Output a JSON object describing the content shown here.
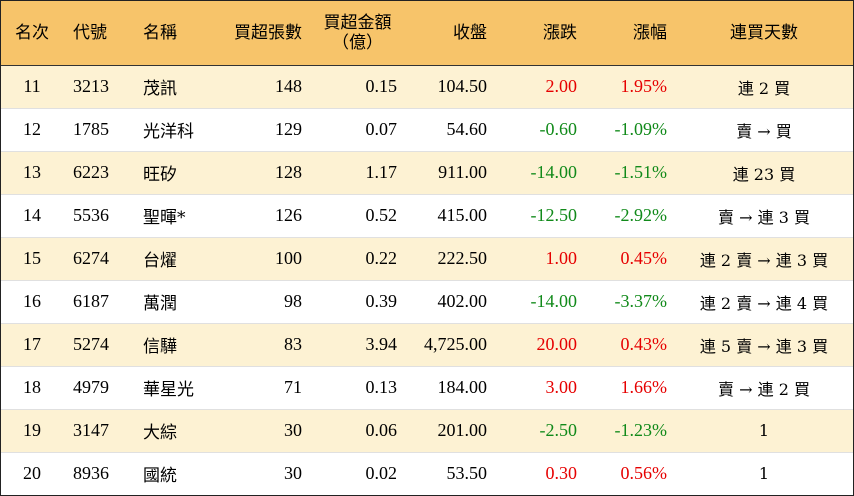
{
  "headers": {
    "rank": "名次",
    "code": "代號",
    "name": "名稱",
    "net_buy_lots": "買超張數",
    "net_buy_amount_line1": "買超金額",
    "net_buy_amount_line2": "（億）",
    "close": "收盤",
    "change": "漲跌",
    "change_pct": "漲幅",
    "consecutive_days": "連買天數"
  },
  "colors": {
    "header_bg": "#f7c46a",
    "odd_row_bg": "#fdf2d3",
    "up": "#e60000",
    "down": "#118a1a"
  },
  "rows": [
    {
      "rank": "11",
      "code": "3213",
      "name": "茂訊",
      "lots": "148",
      "amount": "0.15",
      "close": "104.50",
      "change": "2.00",
      "pct": "1.95%",
      "dir": "up",
      "days": "連 2 買"
    },
    {
      "rank": "12",
      "code": "1785",
      "name": "光洋科",
      "lots": "129",
      "amount": "0.07",
      "close": "54.60",
      "change": "-0.60",
      "pct": "-1.09%",
      "dir": "down",
      "days": "賣 → 買"
    },
    {
      "rank": "13",
      "code": "6223",
      "name": "旺矽",
      "lots": "128",
      "amount": "1.17",
      "close": "911.00",
      "change": "-14.00",
      "pct": "-1.51%",
      "dir": "down",
      "days": "連 23 買"
    },
    {
      "rank": "14",
      "code": "5536",
      "name": "聖暉*",
      "lots": "126",
      "amount": "0.52",
      "close": "415.00",
      "change": "-12.50",
      "pct": "-2.92%",
      "dir": "down",
      "days": "賣 → 連 3 買"
    },
    {
      "rank": "15",
      "code": "6274",
      "name": "台燿",
      "lots": "100",
      "amount": "0.22",
      "close": "222.50",
      "change": "1.00",
      "pct": "0.45%",
      "dir": "up",
      "days": "連 2 賣 → 連 3 買"
    },
    {
      "rank": "16",
      "code": "6187",
      "name": "萬潤",
      "lots": "98",
      "amount": "0.39",
      "close": "402.00",
      "change": "-14.00",
      "pct": "-3.37%",
      "dir": "down",
      "days": "連 2 賣 → 連 4 買"
    },
    {
      "rank": "17",
      "code": "5274",
      "name": "信驊",
      "lots": "83",
      "amount": "3.94",
      "close": "4,725.00",
      "change": "20.00",
      "pct": "0.43%",
      "dir": "up",
      "days": "連 5 賣 → 連 3 買"
    },
    {
      "rank": "18",
      "code": "4979",
      "name": "華星光",
      "lots": "71",
      "amount": "0.13",
      "close": "184.00",
      "change": "3.00",
      "pct": "1.66%",
      "dir": "up",
      "days": "賣 → 連 2 買"
    },
    {
      "rank": "19",
      "code": "3147",
      "name": "大綜",
      "lots": "30",
      "amount": "0.06",
      "close": "201.00",
      "change": "-2.50",
      "pct": "-1.23%",
      "dir": "down",
      "days": "1"
    },
    {
      "rank": "20",
      "code": "8936",
      "name": "國統",
      "lots": "30",
      "amount": "0.02",
      "close": "53.50",
      "change": "0.30",
      "pct": "0.56%",
      "dir": "up",
      "days": "1"
    }
  ]
}
